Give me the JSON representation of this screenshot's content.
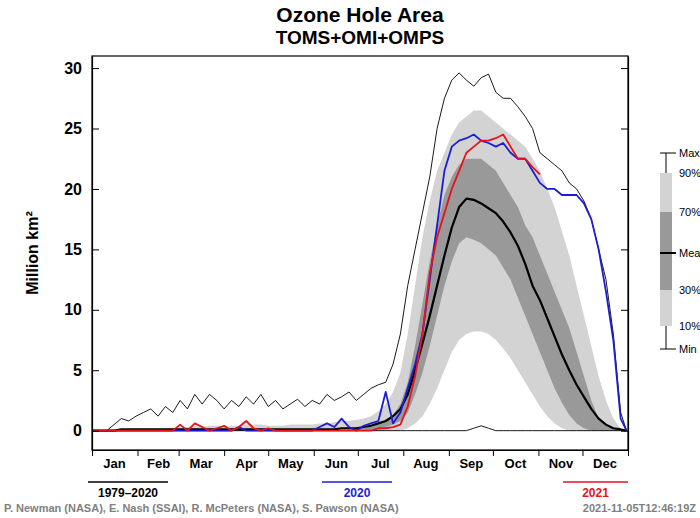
{
  "chart_data": {
    "type": "line",
    "title": "Ozone Hole Area",
    "subtitle": "TOMS+OMI+OMPS",
    "y_label": "Million km²",
    "annotations": [
      "1979–2020",
      "P. Newman (NASA), E. Nash (SSAI), R. McPeters (NASA), S. Pawson (NASA)",
      "2021-11-05T12:46:19Z"
    ],
    "x": [
      1,
      6,
      11,
      16,
      21,
      26,
      31,
      36,
      41,
      46,
      51,
      56,
      61,
      66,
      71,
      76,
      81,
      86,
      91,
      96,
      101,
      106,
      111,
      116,
      121,
      126,
      131,
      136,
      141,
      146,
      151,
      156,
      161,
      166,
      171,
      176,
      181,
      186,
      191,
      196,
      201,
      206,
      211,
      216,
      221,
      226,
      231,
      236,
      241,
      246,
      251,
      256,
      261,
      266,
      271,
      276,
      281,
      286,
      291,
      296,
      301,
      306,
      311,
      316,
      321,
      326,
      331,
      336,
      341,
      346,
      351,
      356,
      361,
      365
    ],
    "xlim": [
      1,
      366
    ],
    "xticks": [
      {
        "value": 16,
        "label": "Jan"
      },
      {
        "value": 46,
        "label": "Feb"
      },
      {
        "value": 75,
        "label": "Mar"
      },
      {
        "value": 106,
        "label": "Apr"
      },
      {
        "value": 136,
        "label": "May"
      },
      {
        "value": 167,
        "label": "Jun"
      },
      {
        "value": 197,
        "label": "Jul"
      },
      {
        "value": 228,
        "label": "Aug"
      },
      {
        "value": 259,
        "label": "Sep"
      },
      {
        "value": 289,
        "label": "Oct"
      },
      {
        "value": 320,
        "label": "Nov"
      },
      {
        "value": 350,
        "label": "Dec"
      }
    ],
    "x_minor_ticks": [
      1,
      32,
      60,
      91,
      121,
      152,
      182,
      213,
      244,
      274,
      305,
      335,
      366
    ],
    "ylim": [
      -1.6,
      31
    ],
    "yticks": [
      0,
      5,
      10,
      15,
      20,
      25,
      30
    ],
    "series": [
      {
        "name": "Max",
        "type": "envelope",
        "color": "#000000",
        "values": [
          0,
          0,
          0,
          0.5,
          1,
          0.8,
          1.2,
          1.5,
          1.8,
          1.2,
          2,
          1.5,
          2.5,
          1.8,
          3,
          2.2,
          3,
          2.5,
          1.8,
          2.5,
          2,
          2.8,
          2.2,
          3,
          2,
          2.5,
          1.8,
          2.2,
          2.6,
          2,
          2.5,
          2.2,
          3,
          2.5,
          2.8,
          3.2,
          2.5,
          3,
          3.5,
          3.8,
          4,
          5.5,
          8,
          12,
          15,
          18,
          21,
          25,
          27.5,
          29,
          29.6,
          29,
          28.5,
          29.2,
          29.5,
          28,
          27.5,
          27.5,
          26.8,
          26,
          25,
          23,
          22.5,
          22,
          21.5,
          20.5,
          20,
          19,
          17.5,
          15,
          12.5,
          8,
          1.5,
          0
        ]
      },
      {
        "name": "90%",
        "type": "band",
        "color": "#d3d3d3",
        "values": [
          0,
          0,
          0,
          0,
          0,
          0,
          0,
          0,
          0.1,
          0.1,
          0.2,
          0.2,
          0.3,
          0.3,
          0.4,
          0.3,
          0.4,
          0.4,
          0.3,
          0.4,
          0.4,
          0.5,
          0.5,
          0.5,
          0.4,
          0.4,
          0.4,
          0.5,
          0.5,
          0.5,
          0.5,
          0.6,
          0.6,
          0.7,
          0.8,
          0.8,
          0.9,
          1,
          1.2,
          1.6,
          2.2,
          3.2,
          4.8,
          8,
          12,
          16,
          19,
          21.5,
          23,
          24.5,
          25.5,
          26,
          26.5,
          26.5,
          26,
          25.5,
          25,
          24.5,
          24,
          23.5,
          22.5,
          21.5,
          20,
          18.5,
          16.5,
          14.5,
          12,
          9.5,
          7,
          4.5,
          2.5,
          1,
          0.2,
          0
        ]
      },
      {
        "name": "70%",
        "type": "band",
        "color": "#999999",
        "values": [
          0,
          0,
          0,
          0,
          0,
          0,
          0,
          0,
          0,
          0,
          0,
          0,
          0,
          0,
          0,
          0,
          0,
          0,
          0,
          0,
          0,
          0,
          0,
          0,
          0,
          0,
          0,
          0,
          0,
          0,
          0,
          0,
          0,
          0.1,
          0.1,
          0.1,
          0.2,
          0.2,
          0.3,
          0.5,
          0.8,
          1.3,
          2.2,
          4,
          7,
          10.5,
          14,
          17,
          19.5,
          21,
          22,
          22.5,
          22.5,
          22.5,
          22,
          21.5,
          20.5,
          19.5,
          18.5,
          17,
          16,
          14.5,
          13,
          11.5,
          10,
          8.5,
          6.5,
          4.5,
          2.5,
          1,
          0.5,
          0.2,
          0,
          0
        ]
      },
      {
        "name": "Mean",
        "type": "mean",
        "color": "#000000",
        "values": [
          0,
          0,
          0,
          0,
          0.1,
          0.1,
          0.1,
          0.1,
          0.1,
          0.1,
          0.1,
          0.1,
          0.1,
          0.1,
          0.1,
          0.1,
          0.1,
          0.1,
          0.1,
          0.1,
          0.1,
          0.1,
          0.1,
          0.1,
          0.1,
          0.1,
          0.1,
          0.1,
          0.1,
          0.1,
          0.1,
          0.1,
          0.1,
          0.1,
          0.2,
          0.2,
          0.2,
          0.3,
          0.4,
          0.6,
          0.8,
          1.2,
          1.8,
          3,
          5,
          7.2,
          9.5,
          12,
          14.5,
          16.8,
          18.5,
          19.2,
          19.1,
          18.8,
          18.4,
          18,
          17.3,
          16.4,
          15.3,
          13.8,
          12,
          10.8,
          9.3,
          7.8,
          6.3,
          5,
          3.8,
          2.8,
          1.8,
          1,
          0.5,
          0.2,
          0.1,
          0
        ]
      },
      {
        "name": "30%",
        "type": "band",
        "color": "#999999",
        "values": [
          0,
          0,
          0,
          0,
          0,
          0,
          0,
          0,
          0,
          0,
          0,
          0,
          0,
          0,
          0,
          0,
          0,
          0,
          0,
          0,
          0,
          0,
          0,
          0,
          0,
          0,
          0,
          0,
          0,
          0,
          0,
          0,
          0,
          0,
          0,
          0,
          0,
          0,
          0,
          0,
          0.3,
          0.5,
          0.8,
          1.5,
          3,
          4.8,
          7,
          9.5,
          12,
          14,
          15.5,
          16,
          15.8,
          15.5,
          15,
          14.5,
          13.5,
          12.5,
          11,
          9.5,
          8,
          6.5,
          5,
          3.5,
          2.3,
          1.3,
          0.6,
          0.2,
          0,
          0,
          0,
          0,
          0,
          0
        ]
      },
      {
        "name": "10%",
        "type": "band",
        "color": "#d3d3d3",
        "values": [
          0,
          0,
          0,
          0,
          0,
          0,
          0,
          0,
          0,
          0,
          0,
          0,
          0,
          0,
          0,
          0,
          0,
          0,
          0,
          0,
          0,
          0,
          0,
          0,
          0,
          0,
          0,
          0,
          0,
          0,
          0,
          0,
          0,
          0,
          0,
          0,
          0,
          0,
          0,
          0,
          0,
          0,
          0,
          0.2,
          0.6,
          1.2,
          2.2,
          3.5,
          5,
          6.5,
          7.5,
          8,
          8.2,
          8.2,
          8,
          7.5,
          6.8,
          6,
          5,
          4,
          3,
          2,
          1.2,
          0.6,
          0.2,
          0,
          0,
          0,
          0,
          0,
          0,
          0,
          0,
          0
        ]
      },
      {
        "name": "Min",
        "type": "envelope",
        "color": "#000000",
        "values": [
          0,
          0,
          0,
          0,
          0,
          0,
          0,
          0,
          0,
          0,
          0,
          0,
          0,
          0,
          0,
          0,
          0,
          0,
          0,
          0,
          0,
          0,
          0,
          0,
          0,
          0,
          0,
          0,
          0,
          0,
          0,
          0,
          0,
          0,
          0,
          0,
          0,
          0,
          0,
          0,
          0,
          0,
          0,
          0,
          0,
          0,
          0,
          0,
          0,
          0,
          0,
          0,
          0.2,
          0.4,
          0.2,
          0,
          0,
          0,
          0,
          0,
          0,
          0,
          0,
          0,
          0,
          0,
          0,
          0,
          0,
          0,
          0,
          0,
          0,
          0
        ]
      },
      {
        "name": "2020",
        "type": "line",
        "color": "#1c1cd6",
        "values": [
          0,
          0,
          0,
          0,
          0,
          0,
          0,
          0,
          0,
          0,
          0,
          0,
          0,
          0,
          0,
          0,
          0,
          0,
          0,
          0,
          0.3,
          0,
          0,
          0,
          0,
          0,
          0,
          0,
          0,
          0,
          0,
          0.3,
          0.6,
          0.3,
          1,
          0.3,
          0,
          0.4,
          0.6,
          0.8,
          3.2,
          0.6,
          1.5,
          3.5,
          5.5,
          8,
          12.5,
          17,
          21.5,
          23.5,
          24,
          24.2,
          24.5,
          24,
          23.8,
          23.5,
          23.8,
          23,
          22.5,
          22.5,
          21.5,
          20.5,
          20,
          20,
          19.5,
          19.5,
          19.5,
          18.8,
          17.5,
          15,
          11.5,
          7.5,
          1,
          0
        ]
      },
      {
        "name": "2021",
        "type": "line",
        "color": "#e3141c",
        "values": [
          0,
          0,
          0,
          0,
          0,
          0,
          0,
          0,
          0,
          0,
          0,
          0,
          0.5,
          0,
          0.6,
          0.3,
          0,
          0.2,
          0.4,
          0,
          0.3,
          0.8,
          0.2,
          0,
          0.2,
          0,
          0,
          0,
          0,
          0,
          0,
          0,
          0,
          0,
          0,
          0,
          0,
          0,
          0,
          0.2,
          0.2,
          0.3,
          0.5,
          2,
          4.5,
          8,
          13,
          16,
          18,
          20,
          21.5,
          23,
          23.5,
          24,
          24,
          24.2,
          24.5,
          23.5,
          22.5,
          22.5,
          21.8,
          21.2,
          null,
          null,
          null,
          null,
          null,
          null,
          null,
          null,
          null,
          null,
          null,
          null
        ]
      }
    ]
  }
}
